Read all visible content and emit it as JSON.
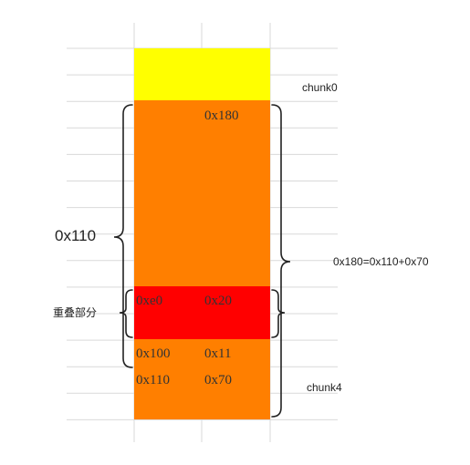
{
  "colors": {
    "chunk0": "#ffff00",
    "overlap": "#ff0000",
    "chunk": "#ff7f00",
    "grid": "#d9d9d9",
    "brace": "#222222"
  },
  "labels": {
    "chunk0": "chunk0",
    "chunk4": "chunk4",
    "size_left": "0x110",
    "overlap_note": "重叠部分",
    "size_right": "0x180=0x110+0x70"
  },
  "cells": {
    "size_180": "0x180",
    "prev_e0": "0xe0",
    "size_20": "0x20",
    "prev_100": "0x100",
    "size_11": "0x11",
    "prev_110": "0x110",
    "size_70": "0x70"
  }
}
